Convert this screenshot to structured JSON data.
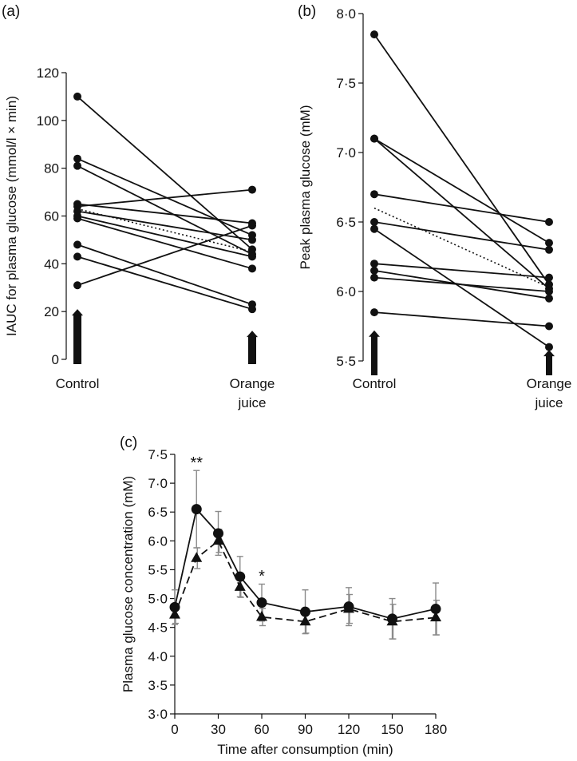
{
  "colors": {
    "ink": "#111111",
    "error_bar": "#8a8a8a"
  },
  "chart_data": [
    {
      "panel": "(a)",
      "type": "line",
      "ylabel": "IAUC for plasma glucose (mmol/l × min)",
      "categories": [
        "Control",
        "Orange\njuice"
      ],
      "yticks": [
        "0",
        "20",
        "40",
        "60",
        "80",
        "100",
        "120"
      ],
      "ylim": [
        0,
        120
      ],
      "series": [
        {
          "values": [
            110,
            46
          ]
        },
        {
          "values": [
            84,
            52
          ]
        },
        {
          "values": [
            81,
            44
          ]
        },
        {
          "values": [
            65,
            57
          ]
        },
        {
          "values": [
            64,
            71
          ]
        },
        {
          "values": [
            62,
            50
          ]
        },
        {
          "values": [
            60,
            43
          ]
        },
        {
          "values": [
            59,
            38
          ]
        },
        {
          "values": [
            48,
            23
          ]
        },
        {
          "values": [
            43,
            21
          ]
        },
        {
          "values": [
            31,
            56
          ]
        }
      ],
      "mean": {
        "values": [
          63,
          45
        ],
        "style": "dotted"
      },
      "arrows": [
        {
          "category": "Control",
          "value": 21
        },
        {
          "category": "Orange\njuice",
          "value": 12
        }
      ]
    },
    {
      "panel": "(b)",
      "type": "line",
      "ylabel": "Peak plasma glucose (mM)",
      "categories": [
        "Control",
        "Orange\njuice"
      ],
      "yticks": [
        "5·5",
        "6·0",
        "6·5",
        "7·0",
        "7·5",
        "8·0"
      ],
      "ylim": [
        5.5,
        8.0
      ],
      "series": [
        {
          "values": [
            7.85,
            6.05
          ]
        },
        {
          "values": [
            7.1,
            6.35
          ]
        },
        {
          "values": [
            7.1,
            6.02
          ]
        },
        {
          "values": [
            6.7,
            6.5
          ]
        },
        {
          "values": [
            6.5,
            6.3
          ]
        },
        {
          "values": [
            6.45,
            5.6
          ]
        },
        {
          "values": [
            6.2,
            6.1
          ]
        },
        {
          "values": [
            6.15,
            5.95
          ]
        },
        {
          "values": [
            6.1,
            6.0
          ]
        },
        {
          "values": [
            5.85,
            5.75
          ]
        }
      ],
      "mean": {
        "values": [
          6.6,
          6.03
        ],
        "style": "dotted"
      },
      "arrows": [
        {
          "category": "Control",
          "value": 5.72
        },
        {
          "category": "Orange\njuice",
          "value": 5.58
        }
      ]
    },
    {
      "panel": "(c)",
      "type": "line",
      "xlabel": "Time after consumption (min)",
      "ylabel": "Plasma glucose concentration (mM)",
      "x": [
        0,
        15,
        30,
        45,
        60,
        90,
        120,
        150,
        180
      ],
      "xticks": [
        "0",
        "30",
        "60",
        "90",
        "120",
        "150",
        "180"
      ],
      "xlim": [
        0,
        180
      ],
      "yticks": [
        "3·0",
        "3·5",
        "4·0",
        "4·5",
        "5·0",
        "5·5",
        "6·0",
        "6·5",
        "7·0",
        "7·5"
      ],
      "ylim": [
        3.0,
        7.5
      ],
      "series": [
        {
          "marker": "circle",
          "line": "solid",
          "values": [
            4.85,
            6.55,
            6.13,
            5.38,
            4.93,
            4.77,
            4.86,
            4.65,
            4.82
          ],
          "error": [
            0.3,
            0.67,
            0.38,
            0.35,
            0.32,
            0.38,
            0.33,
            0.35,
            0.45
          ]
        },
        {
          "marker": "triangle",
          "line": "dashed",
          "values": [
            4.72,
            5.7,
            6.0,
            5.2,
            4.68,
            4.6,
            4.82,
            4.6,
            4.67
          ],
          "error": [
            0.15,
            0.18,
            0.2,
            0.18,
            0.15,
            0.2,
            0.25,
            0.3,
            0.3
          ]
        }
      ],
      "annotations": [
        {
          "x": 15,
          "text": "**"
        },
        {
          "x": 60,
          "text": "*"
        }
      ]
    }
  ]
}
